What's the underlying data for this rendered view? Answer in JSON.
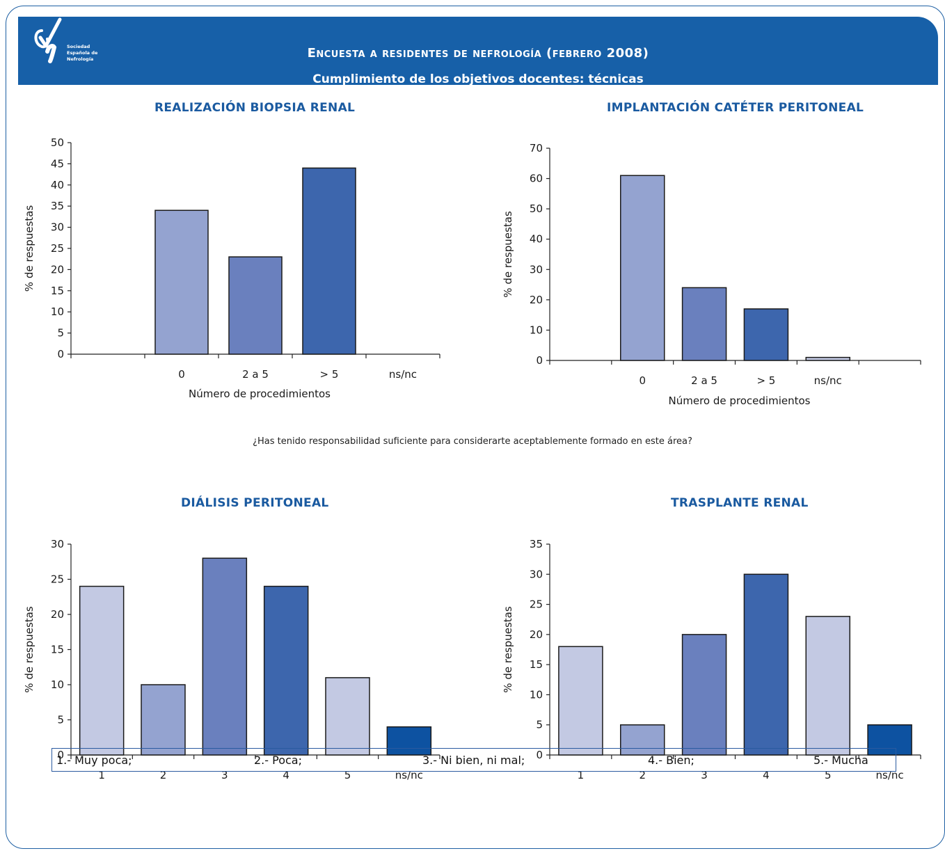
{
  "header": {
    "title": "Encuesta a residentes de nefrología (febrero 2008)",
    "subtitle": "Cumplimiento de los objetivos docentes: técnicas",
    "logo_lines": [
      "Sociedad",
      "Española de",
      "Nefrología"
    ],
    "color": "#1760a8"
  },
  "question": "¿Has tenido responsabilidad suficiente para considerarte aceptablemente formado en este área?",
  "legend": [
    "1.- Muy poca;",
    "2.- Poca;",
    "3.- Ni bien, ni mal;",
    "4.- Bien;",
    "5.- Mucha"
  ],
  "chart_data": [
    {
      "type": "bar",
      "title": "REALIZACIÓN BIOPSIA RENAL",
      "xlabel": "Número de procedimientos",
      "ylabel": "% de respuestas",
      "categories": [
        "",
        "0",
        "2 a 5",
        "> 5",
        "ns/nc"
      ],
      "values": [
        null,
        34,
        23,
        44,
        0
      ],
      "colors": [
        "#ffffff",
        "#94a3d0",
        "#6a80be",
        "#3d66ad",
        "#ffffff"
      ],
      "ylim": [
        0,
        50
      ],
      "yticks": [
        0,
        5,
        10,
        15,
        20,
        25,
        30,
        35,
        40,
        45,
        50
      ]
    },
    {
      "type": "bar",
      "title": "IMPLANTACIÓN CATÉTER PERITONEAL",
      "xlabel": "Número de procedimientos",
      "ylabel": "% de respuestas",
      "categories": [
        "",
        "0",
        "2 a 5",
        "> 5",
        "ns/nc",
        ""
      ],
      "values": [
        null,
        61,
        24,
        17,
        1,
        null
      ],
      "colors": [
        "#ffffff",
        "#94a3d0",
        "#6a80be",
        "#3d66ad",
        "#c3c9e3",
        "#ffffff"
      ],
      "ylim": [
        0,
        70
      ],
      "yticks": [
        0,
        10,
        20,
        30,
        40,
        50,
        60,
        70
      ]
    },
    {
      "type": "bar",
      "title": "DIÁLISIS PERITONEAL",
      "xlabel": "",
      "ylabel": "% de respuestas",
      "categories": [
        "1",
        "2",
        "3",
        "4",
        "5",
        "ns/nc"
      ],
      "values": [
        24,
        10,
        28,
        24,
        11,
        4
      ],
      "colors": [
        "#c3c9e3",
        "#94a3d0",
        "#6a80be",
        "#3d66ad",
        "#c3c9e3",
        "#0d52a1"
      ],
      "ylim": [
        0,
        30
      ],
      "yticks": [
        0,
        5,
        10,
        15,
        20,
        25,
        30
      ]
    },
    {
      "type": "bar",
      "title": "TRASPLANTE RENAL",
      "xlabel": "",
      "ylabel": "% de respuestas",
      "categories": [
        "1",
        "2",
        "3",
        "4",
        "5",
        "ns/nc"
      ],
      "values": [
        18,
        5,
        20,
        30,
        23,
        5
      ],
      "colors": [
        "#c3c9e3",
        "#94a3d0",
        "#6a80be",
        "#3d66ad",
        "#c3c9e3",
        "#0d52a1"
      ],
      "ylim": [
        0,
        35
      ],
      "yticks": [
        0,
        5,
        10,
        15,
        20,
        25,
        30,
        35
      ]
    }
  ]
}
